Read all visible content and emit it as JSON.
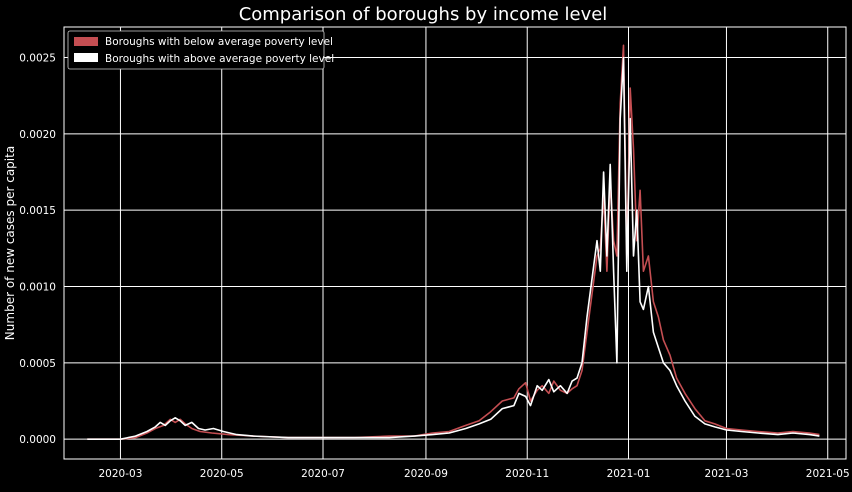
{
  "chart_data": {
    "type": "line",
    "title": "Comparison of boroughs by income level",
    "xlabel": "",
    "ylabel": "Number of new cases per capita",
    "xlim": [
      "2020-01-27",
      "2021-05-12"
    ],
    "ylim": [
      -0.00013,
      0.0027
    ],
    "x_ticks": [
      "2020-03-01",
      "2020-05-01",
      "2020-07-01",
      "2020-09-01",
      "2020-11-01",
      "2021-01-01",
      "2021-03-01",
      "2021-05-01"
    ],
    "x_tick_labels": [
      "2020-03",
      "2020-05",
      "2020-07",
      "2020-09",
      "2020-11",
      "2021-01",
      "2021-03",
      "2021-05"
    ],
    "y_ticks": [
      0,
      0.0005,
      0.001,
      0.0015,
      0.002,
      0.0025
    ],
    "y_tick_labels": [
      "0.0000",
      "0.0005",
      "0.0010",
      "0.0015",
      "0.0020",
      "0.0025"
    ],
    "grid": true,
    "legend_position": "top-left",
    "background": "#000000",
    "series": [
      {
        "name": "Boroughs with below average poverty level",
        "color": "#c44e52",
        "points": [
          [
            "2020-02-10",
            0.0
          ],
          [
            "2020-02-20",
            0.0
          ],
          [
            "2020-03-01",
            0.0
          ],
          [
            "2020-03-10",
            1e-05
          ],
          [
            "2020-03-17",
            4e-05
          ],
          [
            "2020-03-22",
            7e-05
          ],
          [
            "2020-03-27",
            9e-05
          ],
          [
            "2020-03-31",
            0.00013
          ],
          [
            "2020-04-03",
            0.00011
          ],
          [
            "2020-04-06",
            0.00013
          ],
          [
            "2020-04-09",
            0.0001
          ],
          [
            "2020-04-13",
            7e-05
          ],
          [
            "2020-04-18",
            5e-05
          ],
          [
            "2020-04-25",
            4e-05
          ],
          [
            "2020-05-05",
            3e-05
          ],
          [
            "2020-05-20",
            2e-05
          ],
          [
            "2020-06-10",
            1e-05
          ],
          [
            "2020-07-01",
            1e-05
          ],
          [
            "2020-07-20",
            1e-05
          ],
          [
            "2020-08-10",
            2e-05
          ],
          [
            "2020-08-25",
            2e-05
          ],
          [
            "2020-09-05",
            4e-05
          ],
          [
            "2020-09-15",
            5e-05
          ],
          [
            "2020-09-25",
            9e-05
          ],
          [
            "2020-10-03",
            0.00012
          ],
          [
            "2020-10-10",
            0.00018
          ],
          [
            "2020-10-17",
            0.00025
          ],
          [
            "2020-10-24",
            0.00027
          ],
          [
            "2020-10-27",
            0.00033
          ],
          [
            "2020-10-31",
            0.00037
          ],
          [
            "2020-11-03",
            0.00025
          ],
          [
            "2020-11-07",
            0.00032
          ],
          [
            "2020-11-10",
            0.00035
          ],
          [
            "2020-11-14",
            0.0003
          ],
          [
            "2020-11-17",
            0.00038
          ],
          [
            "2020-11-21",
            0.00032
          ],
          [
            "2020-11-25",
            0.0003
          ],
          [
            "2020-11-28",
            0.00033
          ],
          [
            "2020-12-01",
            0.00035
          ],
          [
            "2020-12-04",
            0.00045
          ],
          [
            "2020-12-07",
            0.0007
          ],
          [
            "2020-12-10",
            0.00095
          ],
          [
            "2020-12-13",
            0.0012
          ],
          [
            "2020-12-15",
            0.00125
          ],
          [
            "2020-12-17",
            0.0016
          ],
          [
            "2020-12-19",
            0.0011
          ],
          [
            "2020-12-21",
            0.0017
          ],
          [
            "2020-12-23",
            0.0013
          ],
          [
            "2020-12-25",
            0.0012
          ],
          [
            "2020-12-27",
            0.0022
          ],
          [
            "2020-12-29",
            0.00258
          ],
          [
            "2020-12-31",
            0.0012
          ],
          [
            "2021-01-02",
            0.0023
          ],
          [
            "2021-01-04",
            0.0019
          ],
          [
            "2021-01-06",
            0.0013
          ],
          [
            "2021-01-08",
            0.00163
          ],
          [
            "2021-01-10",
            0.0011
          ],
          [
            "2021-01-13",
            0.0012
          ],
          [
            "2021-01-16",
            0.0009
          ],
          [
            "2021-01-19",
            0.0008
          ],
          [
            "2021-01-22",
            0.00065
          ],
          [
            "2021-01-26",
            0.00055
          ],
          [
            "2021-01-30",
            0.0004
          ],
          [
            "2021-02-04",
            0.0003
          ],
          [
            "2021-02-10",
            0.0002
          ],
          [
            "2021-02-16",
            0.00012
          ],
          [
            "2021-02-22",
            0.0001
          ],
          [
            "2021-03-01",
            7e-05
          ],
          [
            "2021-03-10",
            6e-05
          ],
          [
            "2021-03-20",
            5e-05
          ],
          [
            "2021-04-01",
            4e-05
          ],
          [
            "2021-04-10",
            5e-05
          ],
          [
            "2021-04-20",
            4e-05
          ],
          [
            "2021-04-26",
            3e-05
          ]
        ]
      },
      {
        "name": "Boroughs with above average poverty level",
        "color": "#ffffff",
        "points": [
          [
            "2020-02-10",
            0.0
          ],
          [
            "2020-02-20",
            0.0
          ],
          [
            "2020-03-01",
            0.0
          ],
          [
            "2020-03-10",
            2e-05
          ],
          [
            "2020-03-17",
            5e-05
          ],
          [
            "2020-03-22",
            8e-05
          ],
          [
            "2020-03-25",
            0.00011
          ],
          [
            "2020-03-28",
            9e-05
          ],
          [
            "2020-03-31",
            0.00012
          ],
          [
            "2020-04-03",
            0.00014
          ],
          [
            "2020-04-06",
            0.00012
          ],
          [
            "2020-04-09",
            9e-05
          ],
          [
            "2020-04-13",
            0.00011
          ],
          [
            "2020-04-17",
            7e-05
          ],
          [
            "2020-04-21",
            6e-05
          ],
          [
            "2020-04-26",
            7e-05
          ],
          [
            "2020-05-02",
            5e-05
          ],
          [
            "2020-05-10",
            3e-05
          ],
          [
            "2020-05-20",
            2e-05
          ],
          [
            "2020-06-10",
            1e-05
          ],
          [
            "2020-07-01",
            1e-05
          ],
          [
            "2020-07-20",
            1e-05
          ],
          [
            "2020-08-10",
            1e-05
          ],
          [
            "2020-08-25",
            2e-05
          ],
          [
            "2020-09-05",
            3e-05
          ],
          [
            "2020-09-15",
            4e-05
          ],
          [
            "2020-09-25",
            7e-05
          ],
          [
            "2020-10-03",
            0.0001
          ],
          [
            "2020-10-10",
            0.00013
          ],
          [
            "2020-10-17",
            0.0002
          ],
          [
            "2020-10-24",
            0.00022
          ],
          [
            "2020-10-27",
            0.0003
          ],
          [
            "2020-10-31",
            0.00028
          ],
          [
            "2020-11-03",
            0.00022
          ],
          [
            "2020-11-07",
            0.00035
          ],
          [
            "2020-11-10",
            0.00032
          ],
          [
            "2020-11-14",
            0.00039
          ],
          [
            "2020-11-17",
            0.00031
          ],
          [
            "2020-11-21",
            0.00035
          ],
          [
            "2020-11-25",
            0.0003
          ],
          [
            "2020-11-28",
            0.00038
          ],
          [
            "2020-12-01",
            0.0004
          ],
          [
            "2020-12-04",
            0.0005
          ],
          [
            "2020-12-07",
            0.0008
          ],
          [
            "2020-12-10",
            0.00105
          ],
          [
            "2020-12-13",
            0.0013
          ],
          [
            "2020-12-15",
            0.0011
          ],
          [
            "2020-12-17",
            0.00175
          ],
          [
            "2020-12-19",
            0.0012
          ],
          [
            "2020-12-21",
            0.0018
          ],
          [
            "2020-12-23",
            0.0011
          ],
          [
            "2020-12-25",
            0.0005
          ],
          [
            "2020-12-27",
            0.0021
          ],
          [
            "2020-12-29",
            0.0025
          ],
          [
            "2020-12-31",
            0.0011
          ],
          [
            "2021-01-02",
            0.0021
          ],
          [
            "2021-01-04",
            0.0012
          ],
          [
            "2021-01-06",
            0.0015
          ],
          [
            "2021-01-08",
            0.0009
          ],
          [
            "2021-01-10",
            0.00085
          ],
          [
            "2021-01-13",
            0.001
          ],
          [
            "2021-01-16",
            0.0007
          ],
          [
            "2021-01-19",
            0.0006
          ],
          [
            "2021-01-22",
            0.0005
          ],
          [
            "2021-01-26",
            0.00045
          ],
          [
            "2021-01-30",
            0.00035
          ],
          [
            "2021-02-04",
            0.00025
          ],
          [
            "2021-02-10",
            0.00015
          ],
          [
            "2021-02-16",
            0.0001
          ],
          [
            "2021-02-22",
            8e-05
          ],
          [
            "2021-03-01",
            6e-05
          ],
          [
            "2021-03-10",
            5e-05
          ],
          [
            "2021-03-20",
            4e-05
          ],
          [
            "2021-04-01",
            3e-05
          ],
          [
            "2021-04-10",
            4e-05
          ],
          [
            "2021-04-20",
            3e-05
          ],
          [
            "2021-04-26",
            2e-05
          ]
        ]
      }
    ]
  }
}
